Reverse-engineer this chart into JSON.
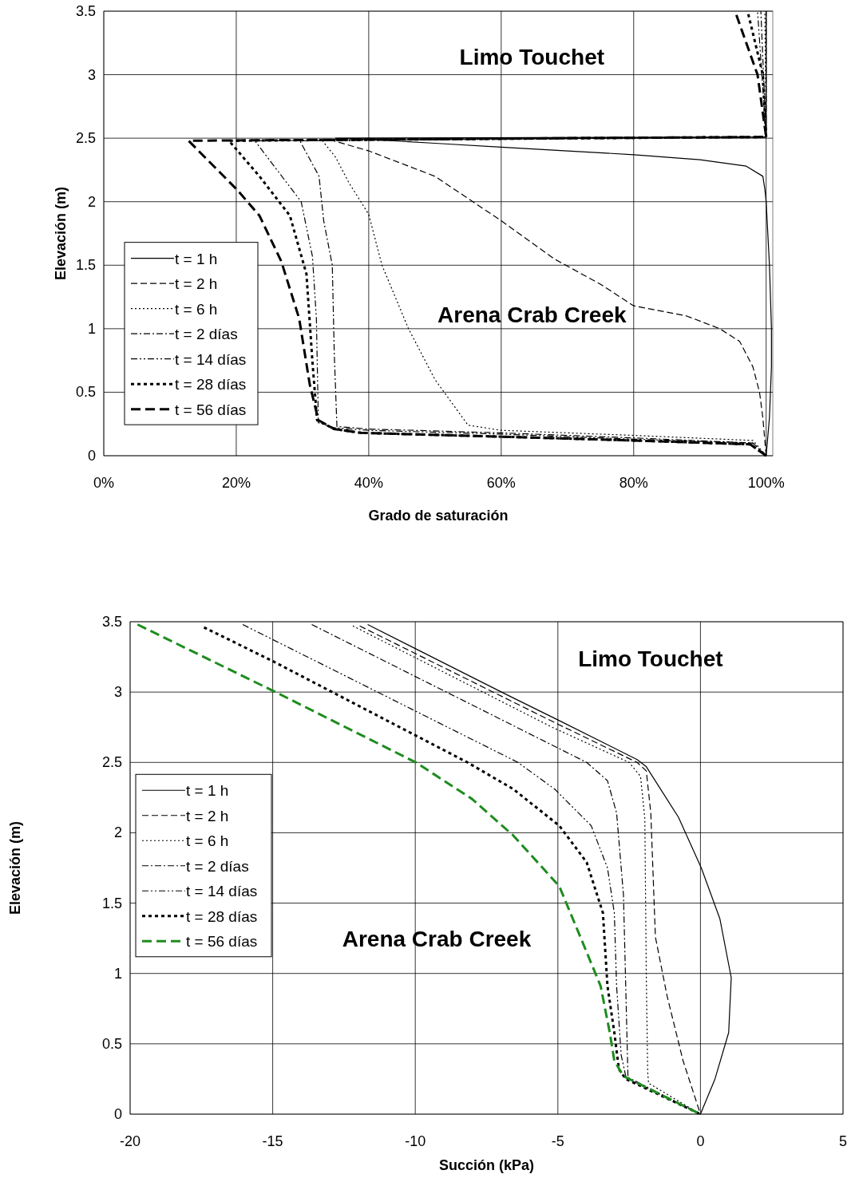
{
  "chart_data": [
    {
      "type": "line",
      "xlabel": "Grado de saturación",
      "ylabel": "Elevación (m)",
      "xlim": [
        0,
        101
      ],
      "ylim": [
        0,
        3.5
      ],
      "xticks": [
        {
          "value": 0,
          "label": "0%"
        },
        {
          "value": 20,
          "label": "20%"
        },
        {
          "value": 40,
          "label": "40%"
        },
        {
          "value": 60,
          "label": "60%"
        },
        {
          "value": 80,
          "label": "80%"
        },
        {
          "value": 100,
          "label": "100%"
        }
      ],
      "yticks": [
        0,
        0.5,
        1,
        1.5,
        2,
        2.5,
        3,
        3.5
      ],
      "grid": true,
      "legend": "bottom left",
      "annotations": [
        "Limo Touchet",
        "Arena Crab Creek"
      ],
      "series": [
        {
          "name": "t = 1 h",
          "color": "#000000",
          "line_style": "solid",
          "x": [
            100,
            100.5,
            100.8,
            100.8,
            100.5,
            100,
            99.8,
            99.5,
            97,
            90,
            80,
            70,
            60,
            50,
            40,
            35,
            100,
            100
          ],
          "values": [
            0,
            0.3,
            0.7,
            1.0,
            1.5,
            2.0,
            2.1,
            2.2,
            2.28,
            2.33,
            2.37,
            2.4,
            2.43,
            2.46,
            2.49,
            2.5,
            2.51,
            3.5
          ]
        },
        {
          "name": "t = 2 h",
          "color": "#000000",
          "line_style": "dashed",
          "x": [
            100,
            99.5,
            99,
            98,
            96,
            93,
            88,
            80,
            75,
            68,
            60,
            50,
            45,
            40,
            34,
            100,
            100
          ],
          "values": [
            0,
            0.3,
            0.5,
            0.7,
            0.9,
            1.0,
            1.1,
            1.18,
            1.35,
            1.55,
            1.85,
            2.2,
            2.3,
            2.4,
            2.49,
            2.51,
            3.5
          ]
        },
        {
          "name": "t = 6 h",
          "color": "#000000",
          "line_style": "dotted",
          "x": [
            100,
            98,
            80,
            60,
            55,
            50,
            46,
            42,
            40,
            37,
            35,
            33,
            100,
            99.8
          ],
          "values": [
            0,
            0.12,
            0.16,
            0.2,
            0.24,
            0.6,
            1.0,
            1.5,
            1.9,
            2.15,
            2.35,
            2.48,
            2.51,
            3.5
          ]
        },
        {
          "name": "t = 2 días",
          "color": "#000000",
          "line_style": "dashdot",
          "x": [
            100,
            98,
            80,
            60,
            40,
            35.2,
            34.8,
            34.5,
            33.2,
            32.5,
            29.6,
            100,
            99.2
          ],
          "values": [
            0,
            0.1,
            0.14,
            0.18,
            0.21,
            0.23,
            0.8,
            1.5,
            1.85,
            2.2,
            2.48,
            2.51,
            3.5
          ]
        },
        {
          "name": "t = 14 días",
          "color": "#000000",
          "line_style": "dashdotdot",
          "x": [
            100,
            98,
            80,
            60,
            40,
            34.8,
            32.4,
            32.1,
            31.5,
            29.8,
            22.8,
            100,
            98.7
          ],
          "values": [
            0,
            0.1,
            0.13,
            0.17,
            0.2,
            0.22,
            0.26,
            1.08,
            1.57,
            2.0,
            2.48,
            2.51,
            3.5
          ]
        },
        {
          "name": "t = 28 días",
          "color": "#000000",
          "line_style": "dotted-bold",
          "x": [
            100,
            97.6,
            80,
            60,
            38.8,
            34.8,
            32.2,
            31.5,
            30.6,
            28.1,
            23.5,
            18.9,
            100,
            99.5,
            97.2
          ],
          "values": [
            0,
            0.09,
            0.12,
            0.15,
            0.18,
            0.21,
            0.28,
            0.74,
            1.43,
            1.89,
            2.2,
            2.48,
            2.51,
            3.0,
            3.5
          ]
        },
        {
          "name": "t = 56 días",
          "color": "#000000",
          "line_style": "dashed-bold",
          "x": [
            100,
            97.6,
            80,
            60,
            38.8,
            34.8,
            32.4,
            31.1,
            29.5,
            26.8,
            23.5,
            20.2,
            12.8,
            100,
            98.7,
            95.3
          ],
          "values": [
            0,
            0.09,
            0.12,
            0.15,
            0.18,
            0.21,
            0.28,
            0.56,
            1.08,
            1.53,
            1.89,
            2.09,
            2.48,
            2.51,
            3.0,
            3.5
          ]
        }
      ]
    },
    {
      "type": "line",
      "xlabel": "Succión (kPa)",
      "ylabel": "Elevación (m)",
      "xlim": [
        -20,
        5
      ],
      "ylim": [
        0,
        3.5
      ],
      "xticks": [
        -20,
        -15,
        -10,
        -5,
        0,
        5
      ],
      "yticks": [
        0,
        0.5,
        1,
        1.5,
        2,
        2.5,
        3,
        3.5
      ],
      "grid": true,
      "legend": "left",
      "annotations": [
        "Limo Touchet",
        "Arena Crab Creek"
      ],
      "series": [
        {
          "name": "t = 1 h",
          "color": "#000000",
          "line_style": "solid",
          "x": [
            -11.67,
            -6.88,
            -4.98,
            -2.22,
            -1.9,
            -0.77,
            0.03,
            0.68,
            1.08,
            0.99,
            0.51,
            0
          ],
          "values": [
            3.48,
            2.99,
            2.8,
            2.52,
            2.47,
            2.11,
            1.75,
            1.39,
            0.97,
            0.58,
            0.25,
            0
          ]
        },
        {
          "name": "t = 2 h",
          "color": "#000000",
          "line_style": "dashed",
          "x": [
            -11.95,
            -4.98,
            -2.22,
            -1.9,
            -1.74,
            -1.58,
            -1.17,
            -0.61,
            0
          ],
          "values": [
            3.47,
            2.77,
            2.5,
            2.44,
            2.14,
            1.26,
            0.84,
            0.38,
            0
          ]
        },
        {
          "name": "t = 6 h",
          "color": "#000000",
          "line_style": "dotted",
          "x": [
            -12.19,
            -5.2,
            -2.5,
            -2.1,
            -1.95,
            -1.9,
            -1.85,
            -1.82,
            0
          ],
          "values": [
            3.47,
            2.75,
            2.5,
            2.4,
            2.1,
            1.0,
            0.3,
            0.22,
            0
          ]
        },
        {
          "name": "t = 2 días",
          "color": "#000000",
          "line_style": "dashdot",
          "x": [
            -13.63,
            -3.99,
            -3.26,
            -2.94,
            -2.7,
            -2.62,
            -2.54,
            0
          ],
          "values": [
            3.48,
            2.5,
            2.37,
            2.14,
            1.56,
            0.91,
            0.25,
            0
          ]
        },
        {
          "name": "t = 14 días",
          "color": "#000000",
          "line_style": "dashdotdot",
          "x": [
            -16.05,
            -6.4,
            -5.11,
            -3.83,
            -3.26,
            -3.02,
            -2.94,
            -2.78,
            -2.62,
            0
          ],
          "values": [
            3.48,
            2.5,
            2.31,
            2.05,
            1.75,
            1.43,
            0.91,
            0.42,
            0.27,
            0
          ]
        },
        {
          "name": "t = 28 días",
          "color": "#000000",
          "line_style": "dotted-bold",
          "x": [
            -17.41,
            -15.0,
            -8.17,
            -6.56,
            -4.95,
            -3.99,
            -3.42,
            -3.26,
            -3.02,
            -2.86,
            -2.62,
            0
          ],
          "values": [
            3.46,
            3.22,
            2.5,
            2.31,
            2.05,
            1.79,
            1.43,
            0.91,
            0.58,
            0.32,
            0.25,
            0
          ]
        },
        {
          "name": "t = 56 días",
          "color": "#1e8c1e",
          "line_style": "dashed-bold",
          "x": [
            -19.74,
            -15.0,
            -9.98,
            -8.01,
            -6.56,
            -4.95,
            -4.15,
            -3.5,
            -3.18,
            -3.02,
            -2.7,
            0
          ],
          "values": [
            3.48,
            3.01,
            2.5,
            2.24,
            1.98,
            1.62,
            1.23,
            0.91,
            0.58,
            0.38,
            0.27,
            0
          ]
        }
      ]
    }
  ]
}
